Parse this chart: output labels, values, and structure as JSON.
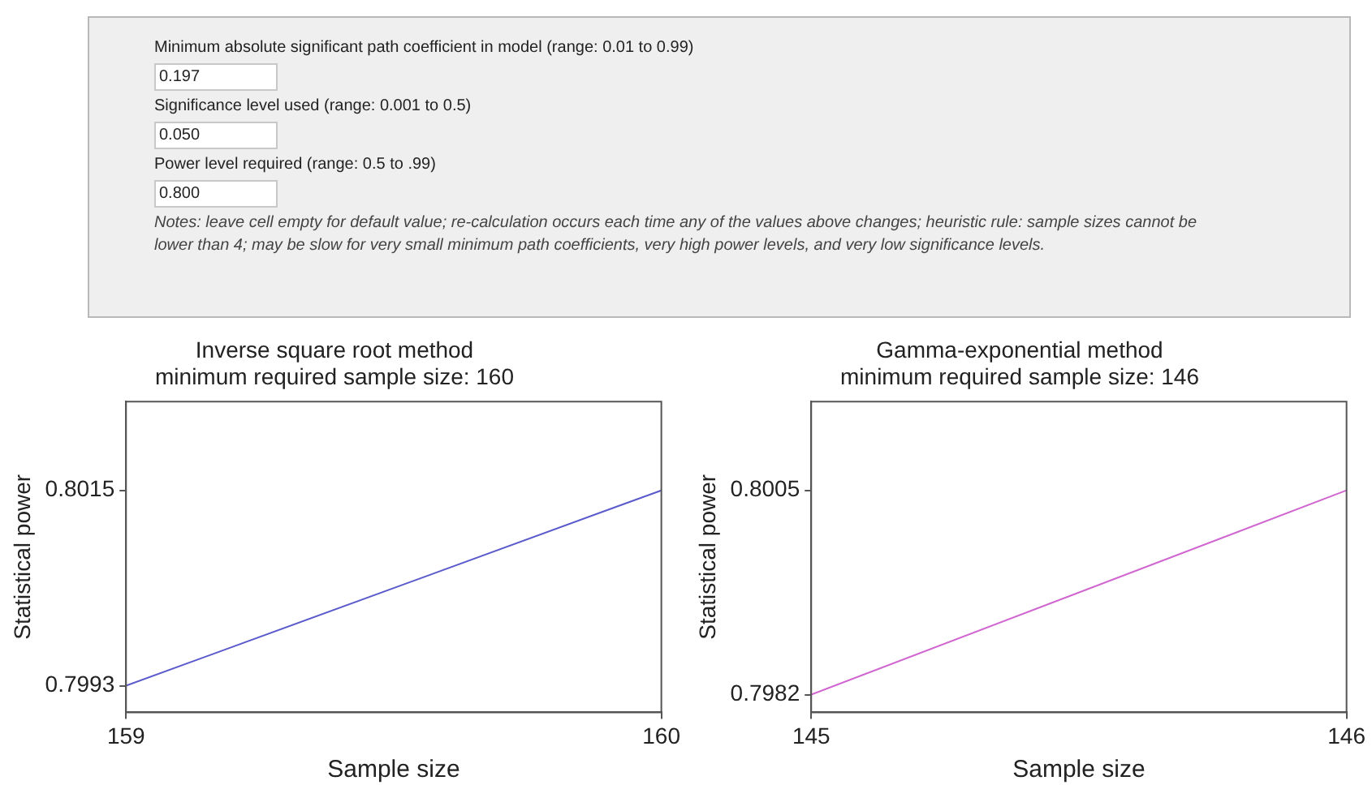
{
  "chart_data": [
    {
      "type": "other",
      "annotations": [
        "Minimum absolute significant path coefficient in model (range: 0.01 to 0.99)",
        "0.197",
        "Significance level used (range: 0.001 to 0.5)",
        "0.050",
        "Power level required (range: 0.5 to .99)",
        "0.800",
        "Notes: leave cell empty for default value; re-calculation occurs each time any of the values above changes; heuristic rule: sample sizes cannot be lower than 4; may be slow for very small minimum path coefficients, very high power levels, and very low significance levels."
      ]
    },
    {
      "type": "line",
      "title": "Inverse square root method\nminimum required sample size: 160",
      "xlabel": "Sample size",
      "ylabel": "Statistical power",
      "xlim": [
        159,
        160
      ],
      "xticks": [
        159,
        160
      ],
      "ylim": [
        0.799,
        0.8025
      ],
      "yticks": [
        0.7993,
        0.8015
      ],
      "grid": false,
      "legend": false,
      "series": [
        {
          "color": "#5a5acc",
          "x": [
            159,
            160
          ],
          "values": [
            0.7993,
            0.8015
          ]
        }
      ]
    },
    {
      "type": "line",
      "title": "Gamma-exponential method\nminimum required sample size: 146",
      "xlabel": "Sample size",
      "ylabel": "Statistical power",
      "xlim": [
        145,
        146
      ],
      "xticks": [
        145,
        146
      ],
      "ylim": [
        0.798,
        0.8015
      ],
      "yticks": [
        0.7982,
        0.8005
      ],
      "grid": false,
      "legend": false,
      "series": [
        {
          "color": "#d066d0",
          "x": [
            145,
            146
          ],
          "values": [
            0.7982,
            0.8005
          ]
        }
      ]
    }
  ]
}
